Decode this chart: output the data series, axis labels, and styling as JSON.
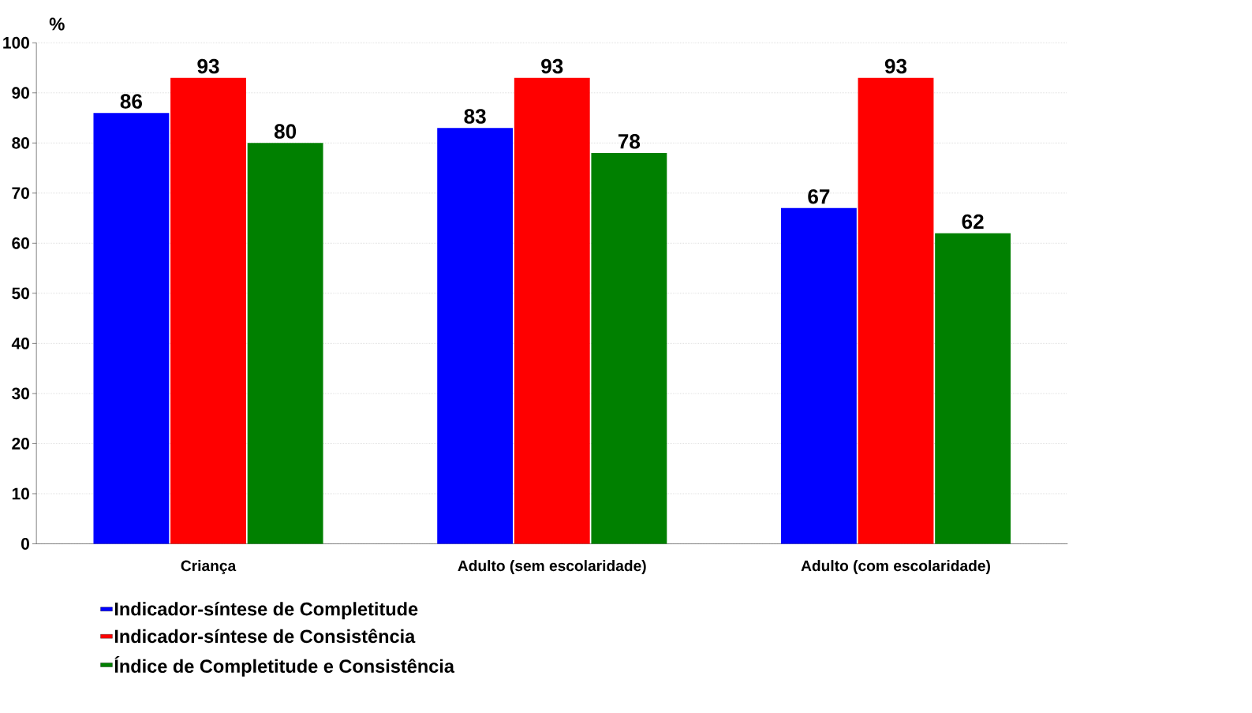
{
  "chart_data": {
    "type": "bar",
    "ylabel": "%",
    "categories": [
      "Criança",
      "Adulto (sem escolaridade)",
      "Adulto (com escolaridade)"
    ],
    "series": [
      {
        "name": "Indicador-síntese de Completitude",
        "color": "#0000ff",
        "values": [
          86,
          83,
          67
        ]
      },
      {
        "name": "Indicador-síntese de Consistência",
        "color": "#ff0000",
        "values": [
          93,
          93,
          93
        ]
      },
      {
        "name": "Índice de Completitude e Consistência",
        "color": "#008000",
        "values": [
          80,
          78,
          62
        ]
      }
    ],
    "ylim": [
      0,
      100
    ],
    "yticks": [
      0,
      10,
      20,
      30,
      40,
      50,
      60,
      70,
      80,
      90,
      100
    ],
    "grid": "y",
    "legend": "bottom",
    "data_labels": true
  }
}
